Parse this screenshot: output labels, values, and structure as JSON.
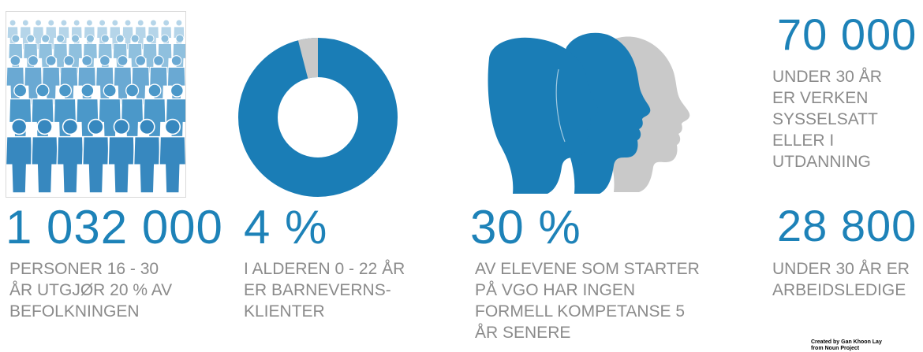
{
  "stats": [
    {
      "number": "1 032 000",
      "text": "PERSONER 16 - 30\nÅR UTGJØR 20 % AV\nBEFOLKNINGEN"
    },
    {
      "number": "4 %",
      "text": "I ALDEREN 0 - 22 ÅR\nER BARNEVERNS-\nKLIENTER"
    },
    {
      "number": "30 %",
      "text": "AV ELEVENE SOM STARTER\nPÅ VGO HAR INGEN\nFORMELL KOMPETANSE 5\nÅR SENERE"
    },
    {
      "number": "70 000",
      "text": "UNDER 30 ÅR\nER VERKEN\nSYSSELSATT\nELLER I\nUTDANNING"
    },
    {
      "number": "28 800",
      "text": "UNDER 30 ÅR ER\nARBEIDSLEDIGE"
    }
  ],
  "donut": {
    "share_percent": 4,
    "colors": {
      "main": "#1a7db6",
      "share": "#c9c9c9"
    }
  },
  "credit": "Created by Gan Khoon Lay\nfrom Noun Project",
  "colors": {
    "accent": "#1d82b8",
    "text": "#8b8b8b",
    "light_blue": "#7fb6d8",
    "gray": "#c9c9c9"
  }
}
